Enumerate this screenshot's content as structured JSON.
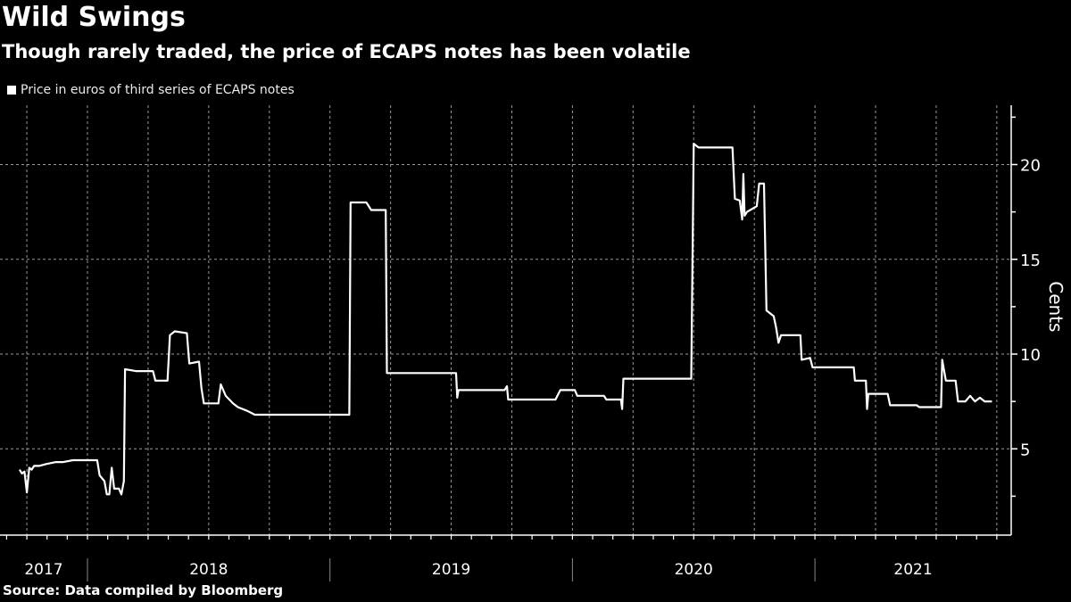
{
  "chart_data": {
    "type": "line",
    "title": "Wild Swings",
    "subtitle": "Though rarely traded, the price of ECAPS notes has been volatile",
    "legend": [
      "Price in euros of third series of ECAPS notes"
    ],
    "legend_placement": "top-left",
    "ylabel": "Cents",
    "xlabel": "",
    "ylim": [
      1,
      23
    ],
    "yticks": [
      5,
      10,
      15,
      20
    ],
    "y_tick_labels": [
      "5",
      "10",
      "15",
      "20"
    ],
    "x_year_labels": [
      "2017",
      "2018",
      "2019",
      "2020",
      "2021"
    ],
    "xlim_years": [
      2017.72,
      2021.79
    ],
    "grid": true,
    "series": [
      {
        "name": "Price in euros of third series of ECAPS notes",
        "color": "#ffffff",
        "points": [
          [
            2017.72,
            3.9
          ],
          [
            2017.73,
            3.7
          ],
          [
            2017.74,
            3.8
          ],
          [
            2017.75,
            2.7
          ],
          [
            2017.76,
            4.0
          ],
          [
            2017.77,
            3.9
          ],
          [
            2017.78,
            4.1
          ],
          [
            2017.8,
            4.1
          ],
          [
            2017.83,
            4.2
          ],
          [
            2017.87,
            4.3
          ],
          [
            2017.9,
            4.3
          ],
          [
            2017.94,
            4.4
          ],
          [
            2018.04,
            4.4
          ],
          [
            2018.05,
            3.6
          ],
          [
            2018.07,
            3.3
          ],
          [
            2018.08,
            2.6
          ],
          [
            2018.09,
            2.6
          ],
          [
            2018.1,
            4.0
          ],
          [
            2018.11,
            2.9
          ],
          [
            2018.13,
            2.9
          ],
          [
            2018.14,
            2.6
          ],
          [
            2018.15,
            3.3
          ],
          [
            2018.155,
            9.2
          ],
          [
            2018.2,
            9.1
          ],
          [
            2018.27,
            9.1
          ],
          [
            2018.28,
            8.6
          ],
          [
            2018.33,
            8.6
          ],
          [
            2018.34,
            11.0
          ],
          [
            2018.36,
            11.2
          ],
          [
            2018.41,
            11.1
          ],
          [
            2018.42,
            9.5
          ],
          [
            2018.46,
            9.6
          ],
          [
            2018.47,
            8.2
          ],
          [
            2018.48,
            7.4
          ],
          [
            2018.54,
            7.4
          ],
          [
            2018.55,
            8.4
          ],
          [
            2018.57,
            7.8
          ],
          [
            2018.6,
            7.4
          ],
          [
            2018.62,
            7.2
          ],
          [
            2018.66,
            7.0
          ],
          [
            2018.69,
            6.8
          ],
          [
            2019.08,
            6.8
          ],
          [
            2019.085,
            18.0
          ],
          [
            2019.15,
            18.0
          ],
          [
            2019.17,
            17.6
          ],
          [
            2019.23,
            17.6
          ],
          [
            2019.235,
            9.0
          ],
          [
            2019.52,
            9.0
          ],
          [
            2019.525,
            7.7
          ],
          [
            2019.53,
            8.1
          ],
          [
            2019.72,
            8.1
          ],
          [
            2019.73,
            8.3
          ],
          [
            2019.735,
            7.6
          ],
          [
            2019.93,
            7.6
          ],
          [
            2019.95,
            8.1
          ],
          [
            2020.01,
            8.1
          ],
          [
            2020.02,
            7.8
          ],
          [
            2020.13,
            7.8
          ],
          [
            2020.14,
            7.6
          ],
          [
            2020.2,
            7.6
          ],
          [
            2020.205,
            7.1
          ],
          [
            2020.21,
            8.7
          ],
          [
            2020.49,
            8.7
          ],
          [
            2020.5,
            21.1
          ],
          [
            2020.52,
            20.9
          ],
          [
            2020.66,
            20.9
          ],
          [
            2020.67,
            18.2
          ],
          [
            2020.69,
            18.1
          ],
          [
            2020.7,
            17.1
          ],
          [
            2020.705,
            19.5
          ],
          [
            2020.71,
            17.3
          ],
          [
            2020.72,
            17.5
          ],
          [
            2020.76,
            17.8
          ],
          [
            2020.77,
            19.0
          ],
          [
            2020.79,
            19.0
          ],
          [
            2020.8,
            12.3
          ],
          [
            2020.83,
            12.0
          ],
          [
            2020.84,
            11.4
          ],
          [
            2020.85,
            10.6
          ],
          [
            2020.86,
            11.0
          ],
          [
            2020.94,
            11.0
          ],
          [
            2020.945,
            9.7
          ],
          [
            2020.98,
            9.8
          ],
          [
            2020.99,
            9.3
          ],
          [
            2021.16,
            9.3
          ],
          [
            2021.165,
            8.6
          ],
          [
            2021.21,
            8.6
          ],
          [
            2021.215,
            7.1
          ],
          [
            2021.22,
            7.9
          ],
          [
            2021.3,
            7.9
          ],
          [
            2021.31,
            7.3
          ],
          [
            2021.42,
            7.3
          ],
          [
            2021.43,
            7.2
          ],
          [
            2021.52,
            7.2
          ],
          [
            2021.525,
            9.7
          ],
          [
            2021.54,
            8.6
          ],
          [
            2021.58,
            8.6
          ],
          [
            2021.59,
            7.5
          ],
          [
            2021.62,
            7.5
          ],
          [
            2021.64,
            7.8
          ],
          [
            2021.66,
            7.5
          ],
          [
            2021.68,
            7.7
          ],
          [
            2021.7,
            7.5
          ],
          [
            2021.73,
            7.5
          ]
        ]
      }
    ]
  },
  "source": "Source: Data compiled by Bloomberg"
}
